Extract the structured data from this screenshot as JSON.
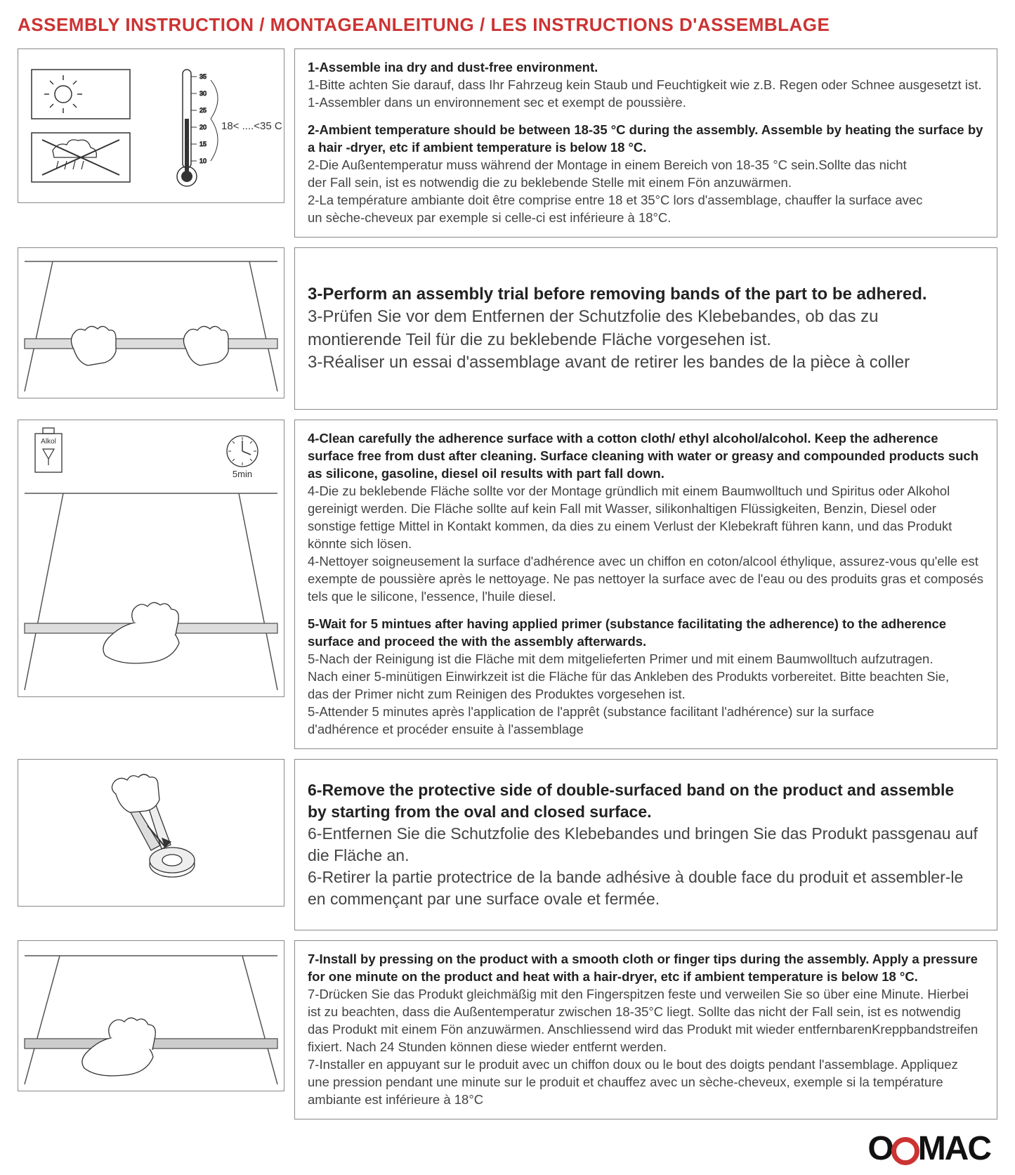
{
  "title": "ASSEMBLY INSTRUCTION / MONTAGEANLEITUNG / LES INSTRUCTIONS D'ASSEMBLAGE",
  "colors": {
    "title": "#cc3333",
    "border": "#888888",
    "text_bold": "#222222",
    "text_normal": "#444444",
    "background": "#ffffff",
    "logo_ring": "#cc3333",
    "logo_text": "#111111"
  },
  "logo": {
    "text_before": "O",
    "text_after": "MAC"
  },
  "steps": [
    {
      "illust": "temperature",
      "temp_range_label": "18< ....<35 C",
      "thermometer_ticks": [
        "35",
        "30",
        "25",
        "20",
        "15",
        "10"
      ],
      "lines": [
        {
          "bold": true,
          "text": "1-Assemble ina dry and dust-free environment."
        },
        {
          "bold": false,
          "text": "1-Bitte achten Sie darauf, dass Ihr Fahrzeug kein Staub und Feuchtigkeit wie z.B. Regen oder Schnee ausgesetzt ist."
        },
        {
          "bold": false,
          "text": "1-Assembler dans un environnement sec et exempt de poussière."
        },
        {
          "gap": true
        },
        {
          "bold": true,
          "text": "2-Ambient temperature should be between 18-35 °C  during the assembly. Assemble by heating the surface by a hair -dryer, etc if ambient temperature is below 18 °C."
        },
        {
          "bold": false,
          "text": "2-Die Außentemperatur muss während der Montage in einem Bereich von 18-35 °C  sein.Sollte das nicht"
        },
        {
          "bold": false,
          "text": "der Fall sein, ist es notwendig die zu beklebende Stelle mit einem Fön anzuwärmen."
        },
        {
          "bold": false,
          "text": "2-La température ambiante doit être comprise entre 18 et 35°C lors d'assemblage, chauffer la surface avec"
        },
        {
          "bold": false,
          "text": " un sèche-cheveux par exemple si celle-ci est inférieure à 18°C."
        }
      ]
    },
    {
      "illust": "trial",
      "lines": [
        {
          "bold": true,
          "text": "3-Perform an assembly trial before removing bands of the part to be adhered.",
          "fontsize": 24
        },
        {
          "bold": false,
          "text": "3-Prüfen Sie vor dem Entfernen der Schutzfolie des Klebebandes, ob das zu",
          "fontsize": 24
        },
        {
          "bold": false,
          "text": "montierende Teil für die zu beklebende Fläche vorgesehen ist.",
          "fontsize": 24
        },
        {
          "bold": false,
          "text": "3-Réaliser un essai d'assemblage avant de retirer les bandes de la pièce à coller",
          "fontsize": 24
        }
      ]
    },
    {
      "illust": "clean",
      "alkol_label": "Alkol",
      "timer_label": "5min",
      "lines": [
        {
          "bold": true,
          "text": "4-Clean carefully the adherence surface with a cotton cloth/ ethyl alcohol/alcohol. Keep the adherence surface free from dust after cleaning. Surface cleaning with water or greasy and compounded products such as silicone, gasoline, diesel oil results with part fall down."
        },
        {
          "bold": false,
          "text": "4-Die zu beklebende Fläche sollte vor der Montage gründlich mit einem Baumwolltuch und Spiritus oder Alkohol gereinigt werden. Die Fläche sollte auf kein Fall mit Wasser, silikonhaltigen Flüssigkeiten, Benzin, Diesel oder sonstige fettige Mittel in Kontakt kommen, da dies zu einem Verlust der Klebekraft führen kann, und das Produkt könnte sich lösen."
        },
        {
          "bold": false,
          "text": "4-Nettoyer soigneusement la surface d'adhérence avec un chiffon en coton/alcool éthylique, assurez-vous qu'elle est exempte de poussière après le nettoyage. Ne pas nettoyer la surface avec de l'eau ou des produits gras et composés tels que le silicone, l'essence, l'huile diesel."
        },
        {
          "gap": true
        },
        {
          "bold": true,
          "text": "5-Wait for 5 mintues after having applied primer (substance facilitating the adherence) to the adherence surface and proceed the with the assembly afterwards."
        },
        {
          "bold": false,
          "text": "5-Nach der Reinigung ist die Fläche mit dem mitgelieferten Primer und mit einem Baumwolltuch aufzutragen."
        },
        {
          "bold": false,
          "text": "Nach einer 5-minütigen Einwirkzeit ist die Fläche für das Ankleben des Produkts vorbereitet. Bitte beachten Sie,"
        },
        {
          "bold": false,
          "text": "das der Primer nicht zum Reinigen des Produktes vorgesehen ist."
        },
        {
          "bold": false,
          "text": "5-Attender 5 minutes après l'application de l'apprêt (substance facilitant l'adhérence) sur la surface"
        },
        {
          "bold": false,
          "text": "d'adhérence et procéder ensuite à l'assemblage"
        }
      ]
    },
    {
      "illust": "remove",
      "lines": [
        {
          "bold": true,
          "text": "6-Remove the protective side of double-surfaced band on the product and assemble",
          "fontsize": 23
        },
        {
          "bold": true,
          "text": "by starting from the oval and closed surface.",
          "fontsize": 23
        },
        {
          "bold": false,
          "text": "6-Entfernen Sie die Schutzfolie des Klebebandes und bringen Sie das Produkt passgenau auf",
          "fontsize": 23
        },
        {
          "bold": false,
          "text": "die Fläche an.",
          "fontsize": 23
        },
        {
          "bold": false,
          "text": "6-Retirer la partie protectrice de la bande adhésive à double face du produit et assembler-le",
          "fontsize": 23
        },
        {
          "bold": false,
          "text": "en commençant par une surface ovale et fermée.",
          "fontsize": 23
        }
      ]
    },
    {
      "illust": "press",
      "lines": [
        {
          "bold": true,
          "text": "7-Install by pressing on the product with a smooth cloth or finger tips during the assembly. Apply a pressure for one minute on the product and heat with a hair-dryer, etc if ambient temperature is below 18 °C."
        },
        {
          "bold": false,
          "text": "7-Drücken Sie das Produkt gleichmäßig mit den Fingerspitzen feste und verweilen Sie so über eine Minute. Hierbei"
        },
        {
          "bold": false,
          "text": "ist zu beachten, dass die Außentemperatur zwischen 18-35°C liegt. Sollte das nicht der Fall sein, ist es notwendig"
        },
        {
          "bold": false,
          "text": "das Produkt mit einem Fön anzuwärmen. Anschliessend wird das Produkt mit wieder entfernbarenKreppbandstreifen"
        },
        {
          "bold": false,
          "text": "fixiert. Nach 24 Stunden können diese wieder entfernt werden."
        },
        {
          "bold": false,
          "text": "7-Installer en appuyant sur le produit avec un chiffon doux ou le bout des doigts pendant l'assemblage. Appliquez"
        },
        {
          "bold": false,
          "text": " une pression pendant une minute sur le produit et chauffez avec un sèche-cheveux, exemple si la température ambiante est inférieure à 18°C"
        }
      ]
    }
  ]
}
